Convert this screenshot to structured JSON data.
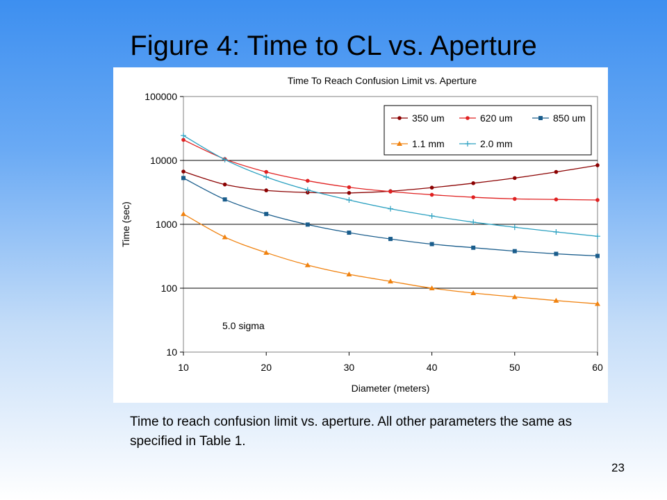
{
  "slide": {
    "title": "Figure 4: Time to CL vs. Aperture",
    "caption": "Time to reach confusion limit vs. aperture.  All other parameters the same as specified in Table 1.",
    "page_number": "23"
  },
  "chart_data": {
    "type": "line",
    "title": "Time To Reach Confusion Limit vs. Aperture",
    "xlabel": "Diameter (meters)",
    "ylabel": "Time (sec)",
    "xlim": [
      10,
      60
    ],
    "ylim": [
      10,
      100000
    ],
    "yscale": "log",
    "x_ticks": [
      10,
      20,
      30,
      40,
      50,
      60
    ],
    "y_ticks": [
      10,
      100,
      1000,
      10000,
      100000
    ],
    "y_tick_labels": [
      "10",
      "100",
      "1000",
      "10000",
      "100000"
    ],
    "grid": "horizontal",
    "legend_position": "top-right",
    "annotation": "5.0 sigma",
    "x": [
      10,
      15,
      20,
      25,
      30,
      35,
      40,
      45,
      50,
      55,
      60
    ],
    "series": [
      {
        "name": "350 um",
        "color": "#8b0000",
        "marker": "circle",
        "values": [
          6700,
          4200,
          3400,
          3150,
          3100,
          3300,
          3750,
          4400,
          5300,
          6600,
          8400
        ]
      },
      {
        "name": "620 um",
        "color": "#e02020",
        "marker": "circle",
        "values": [
          21000,
          10500,
          6600,
          4800,
          3800,
          3250,
          2900,
          2650,
          2500,
          2450,
          2400
        ]
      },
      {
        "name": "850 um",
        "color": "#1a5d8c",
        "marker": "square",
        "values": [
          5300,
          2450,
          1450,
          990,
          740,
          590,
          490,
          430,
          380,
          345,
          320
        ]
      },
      {
        "name": "1.1 mm",
        "color": "#f0820f",
        "marker": "triangle",
        "values": [
          1450,
          630,
          360,
          230,
          165,
          128,
          100,
          84,
          73,
          64,
          57
        ]
      },
      {
        "name": "2.0 mm",
        "color": "#2aa0c0",
        "marker": "plus",
        "values": [
          24500,
          10300,
          5500,
          3450,
          2400,
          1750,
          1350,
          1080,
          900,
          760,
          650
        ]
      }
    ]
  }
}
